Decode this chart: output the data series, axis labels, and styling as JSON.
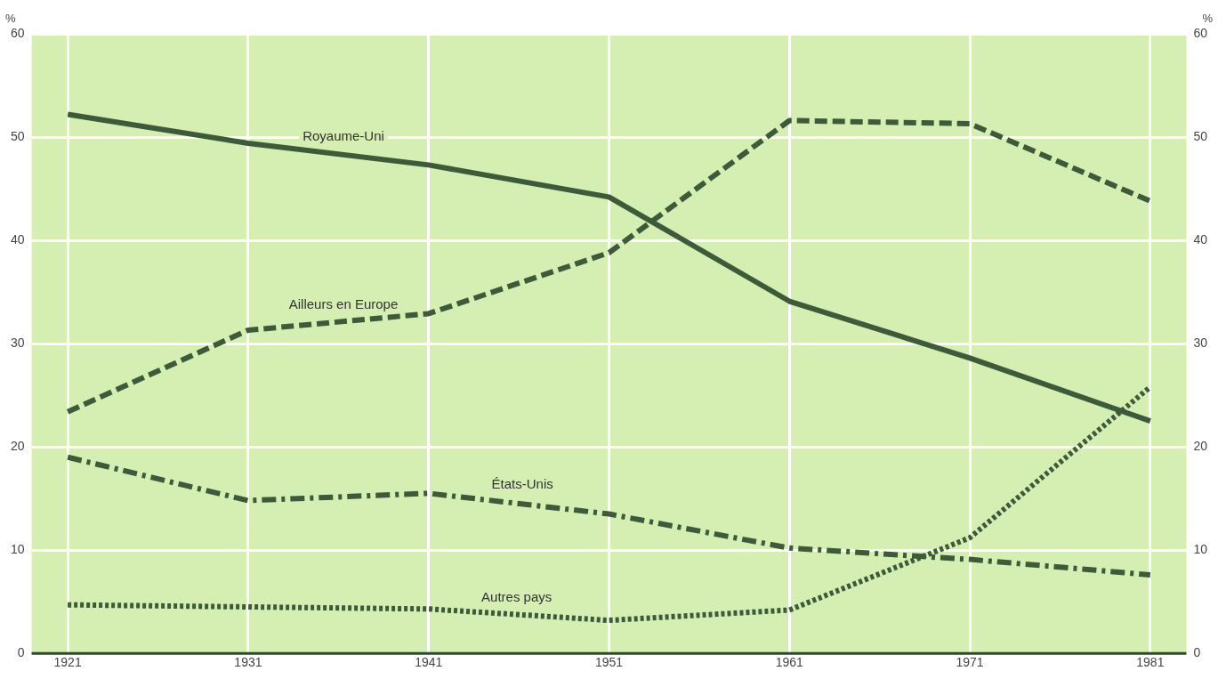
{
  "chart_data": {
    "type": "line",
    "ylabel": "%",
    "y2label": "%",
    "x": [
      1921,
      1931,
      1941,
      1951,
      1961,
      1971,
      1981
    ],
    "xlim": [
      1919,
      1983
    ],
    "xticks": [
      1921,
      1931,
      1941,
      1951,
      1961,
      1971,
      1981
    ],
    "ylim": [
      0,
      60
    ],
    "yticks": [
      0,
      10,
      20,
      30,
      40,
      50,
      60
    ],
    "y2lim": [
      0,
      60
    ],
    "y2ticks": [
      0,
      10,
      20,
      30,
      40,
      50,
      60
    ],
    "grid": true,
    "legend": false,
    "marker": "none",
    "series": [
      {
        "name": "Royaume-Uni",
        "color": "#3d5a3a",
        "line_style": "solid",
        "values": [
          52.2,
          49.4,
          47.3,
          44.2,
          34.1,
          28.6,
          22.5
        ]
      },
      {
        "name": "Ailleurs en Europe",
        "color": "#3d5a3a",
        "line_style": "dashed",
        "values": [
          23.4,
          31.3,
          32.9,
          38.8,
          51.6,
          51.3,
          43.8
        ]
      },
      {
        "name": "États-Unis",
        "color": "#3d5a3a",
        "line_style": "dashdot",
        "values": [
          19.0,
          14.8,
          15.5,
          13.5,
          10.2,
          9.1,
          7.6
        ]
      },
      {
        "name": "Autres pays",
        "color": "#3d5a3a",
        "line_style": "dotted",
        "values": [
          4.7,
          4.5,
          4.3,
          3.2,
          4.2,
          11.2,
          25.8
        ]
      }
    ]
  }
}
